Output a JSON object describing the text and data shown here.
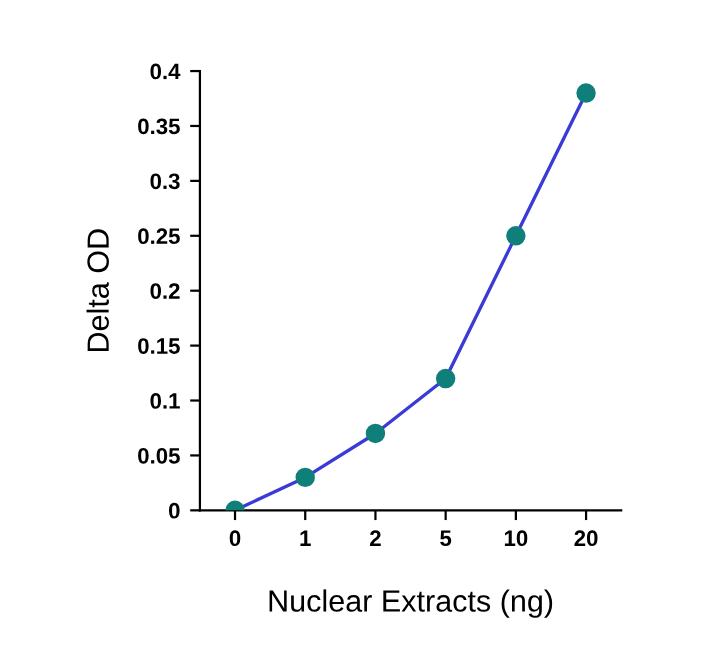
{
  "chart_data": {
    "type": "line",
    "xlabel": "Nuclear Extracts (ng)",
    "ylabel": "Delta OD",
    "categories": [
      "0",
      "1",
      "2",
      "5",
      "10",
      "20"
    ],
    "series": [
      {
        "color": "#3a3ad6",
        "colors": [
          "#0f7f7a",
          "#0f7f7a",
          "#0f7f7a",
          "#0f7f7a",
          "#0f7f7a",
          "#0f7f7a"
        ],
        "values": [
          0,
          0.03,
          0.07,
          0.12,
          0.25,
          0.38
        ]
      }
    ],
    "ylim": [
      0,
      0.4
    ],
    "yticks": [
      0,
      0.05,
      0.1,
      0.15,
      0.2,
      0.25,
      0.3,
      0.35,
      0.4
    ],
    "marker": "circle",
    "line_style": "solid",
    "grid": false,
    "legend": false
  }
}
